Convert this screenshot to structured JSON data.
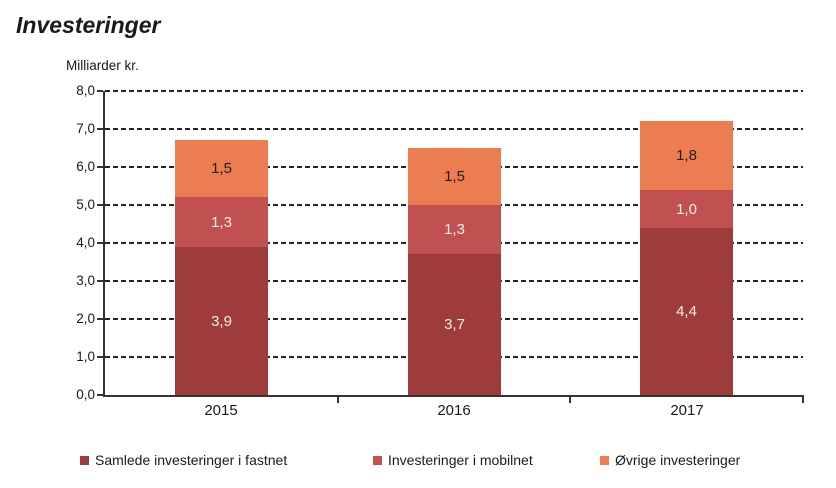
{
  "title": "Investeringer",
  "chart_data": {
    "type": "bar",
    "stacked": true,
    "title": "Investeringer",
    "ylabel": "Milliarder kr.",
    "categories": [
      "2015",
      "2016",
      "2017"
    ],
    "series": [
      {
        "name": "Samlede investeringer i fastnet",
        "color": "#9E3C3C",
        "label_color": "#F3EEE9",
        "values": [
          3.9,
          3.7,
          4.4
        ],
        "labels": [
          "3,9",
          "3,7",
          "4,4"
        ]
      },
      {
        "name": "Investeringer i mobilnet",
        "color": "#C05150",
        "label_color": "#F3EEE9",
        "values": [
          1.3,
          1.3,
          1.0
        ],
        "labels": [
          "1,3",
          "1,3",
          "1,0"
        ]
      },
      {
        "name": "Øvrige investeringer",
        "color": "#EC7D51",
        "label_color": "#1F1F1F",
        "values": [
          1.5,
          1.5,
          1.8
        ],
        "labels": [
          "1,5",
          "1,5",
          "1,8"
        ]
      }
    ],
    "totals": [
      6.7,
      6.5,
      7.2
    ],
    "ylim": [
      0,
      8
    ],
    "ytick_step": 1,
    "ytick_labels": [
      "0,0",
      "1,0",
      "2,0",
      "3,0",
      "4,0",
      "5,0",
      "6,0",
      "7,0",
      "8,0"
    ],
    "grid": "horizontal-dashed",
    "legend_position": "bottom"
  }
}
